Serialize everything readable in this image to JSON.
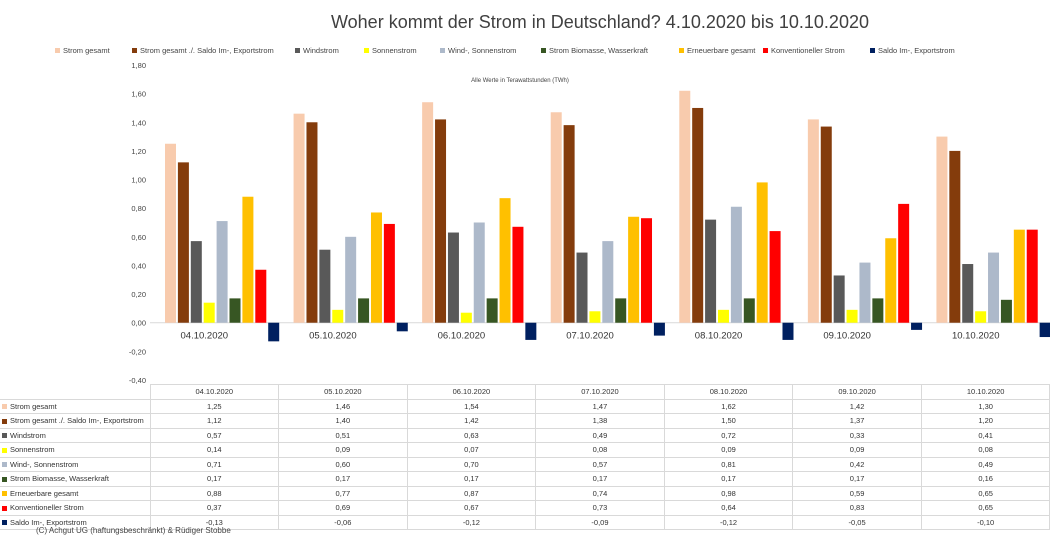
{
  "chart_data": {
    "type": "bar",
    "title": "Woher kommt der Strom in Deutschland? 4.10.2020 bis 10.10.2020",
    "subtitle": "Alle Werte in Terawattstunden (TWh)",
    "categories": [
      "04.10.2020",
      "05.10.2020",
      "06.10.2020",
      "07.10.2020",
      "08.10.2020",
      "09.10.2020",
      "10.10.2020"
    ],
    "ylim": [
      -0.4,
      1.8
    ],
    "yticks": [
      "1,80",
      "1,60",
      "1,40",
      "1,20",
      "1,00",
      "0,80",
      "0,60",
      "0,40",
      "0,20",
      "0,00",
      "-0,20",
      "-0,40"
    ],
    "legend_position": "top",
    "grid": false,
    "series": [
      {
        "name": "Strom gesamt",
        "color": "#f8cbad",
        "values": [
          1.25,
          1.46,
          1.54,
          1.47,
          1.62,
          1.42,
          1.3
        ],
        "labels": [
          "1,25",
          "1,46",
          "1,54",
          "1,47",
          "1,62",
          "1,42",
          "1,30"
        ]
      },
      {
        "name": "Strom gesamt ./. Saldo Im-, Exportstrom",
        "color": "#843c0c",
        "values": [
          1.12,
          1.4,
          1.42,
          1.38,
          1.5,
          1.37,
          1.2
        ],
        "labels": [
          "1,12",
          "1,40",
          "1,42",
          "1,38",
          "1,50",
          "1,37",
          "1,20"
        ]
      },
      {
        "name": "Windstrom",
        "color": "#595959",
        "values": [
          0.57,
          0.51,
          0.63,
          0.49,
          0.72,
          0.33,
          0.41
        ],
        "labels": [
          "0,57",
          "0,51",
          "0,63",
          "0,49",
          "0,72",
          "0,33",
          "0,41"
        ]
      },
      {
        "name": "Sonnenstrom",
        "color": "#ffff00",
        "values": [
          0.14,
          0.09,
          0.07,
          0.08,
          0.09,
          0.09,
          0.08
        ],
        "labels": [
          "0,14",
          "0,09",
          "0,07",
          "0,08",
          "0,09",
          "0,09",
          "0,08"
        ]
      },
      {
        "name": "Wind-, Sonnenstrom",
        "color": "#adb9ca",
        "values": [
          0.71,
          0.6,
          0.7,
          0.57,
          0.81,
          0.42,
          0.49
        ],
        "labels": [
          "0,71",
          "0,60",
          "0,70",
          "0,57",
          "0,81",
          "0,42",
          "0,49"
        ]
      },
      {
        "name": "Strom Biomasse, Wasserkraft",
        "color": "#375623",
        "values": [
          0.17,
          0.17,
          0.17,
          0.17,
          0.17,
          0.17,
          0.16
        ],
        "labels": [
          "0,17",
          "0,17",
          "0,17",
          "0,17",
          "0,17",
          "0,17",
          "0,16"
        ]
      },
      {
        "name": "Erneuerbare gesamt",
        "color": "#ffc000",
        "values": [
          0.88,
          0.77,
          0.87,
          0.74,
          0.98,
          0.59,
          0.65
        ],
        "labels": [
          "0,88",
          "0,77",
          "0,87",
          "0,74",
          "0,98",
          "0,59",
          "0,65"
        ]
      },
      {
        "name": "Konventioneller Strom",
        "color": "#ff0000",
        "values": [
          0.37,
          0.69,
          0.67,
          0.73,
          0.64,
          0.83,
          0.65
        ],
        "labels": [
          "0,37",
          "0,69",
          "0,67",
          "0,73",
          "0,64",
          "0,83",
          "0,65"
        ]
      },
      {
        "name": "Saldo Im-, Exportstrom",
        "color": "#002060",
        "values": [
          -0.13,
          -0.06,
          -0.12,
          -0.09,
          -0.12,
          -0.05,
          -0.1
        ],
        "labels": [
          "-0,13",
          "-0,06",
          "-0,12",
          "-0,09",
          "-0,12",
          "-0,05",
          "-0,10"
        ]
      }
    ]
  },
  "footer": "(C) Achgut UG (haftungsbeschränkt) & Rüdiger Stobbe"
}
